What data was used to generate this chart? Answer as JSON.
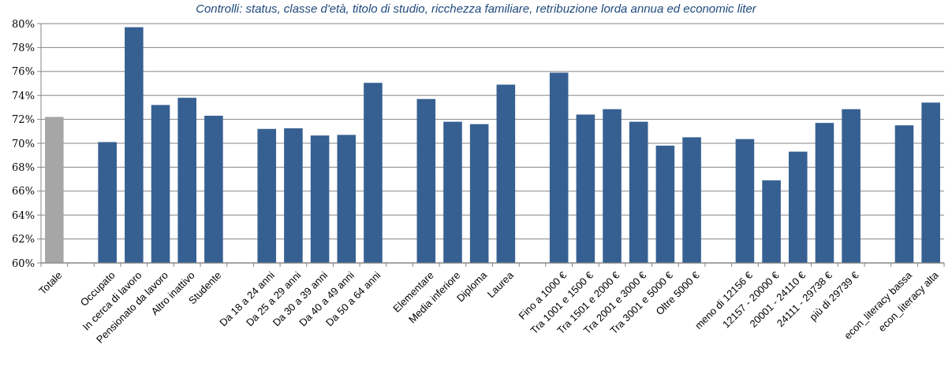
{
  "chart_data": {
    "type": "bar",
    "title": "Controlli: status, classe d'età, titolo di studio, ricchezza familiare, retribuzione lorda annua ed economic liter",
    "categories": [
      "Totale",
      null,
      "Occupato",
      "In cerca di lavoro",
      "Pensionato da lavoro",
      "Altro inattivo",
      "Studente",
      null,
      "Da 18 a 24 anni",
      "Da 25 a 29 anni",
      "Da 30 a 39 anni",
      "Da 40 a 49 anni",
      "Da 50 a 64 anni",
      null,
      "Elementare",
      "Media inferiore",
      "Diploma",
      "Laurea",
      null,
      "Fino a 1000 €",
      "Tra 1001 e 1500 €",
      "Tra 1501 e 2000 €",
      "Tra 2001 e 3000 €",
      "Tra 3001 e 5000 €",
      "Oltre 5000 €",
      null,
      "meno di 12156 €",
      "12157 - 20000 €",
      "20001 - 24110 €",
      "24111 - 29738 €",
      "più di 29739 €",
      null,
      "econ_literacy bassa",
      "econ_literacy alta"
    ],
    "values": [
      72.2,
      null,
      70.1,
      79.7,
      73.2,
      73.8,
      72.3,
      null,
      71.2,
      71.25,
      70.65,
      70.7,
      75.05,
      null,
      73.7,
      71.8,
      71.6,
      74.9,
      null,
      75.9,
      72.4,
      72.85,
      71.8,
      69.8,
      70.5,
      null,
      70.35,
      66.9,
      69.3,
      71.7,
      72.85,
      null,
      71.5,
      73.4
    ],
    "colors": [
      "#a6a6a6",
      null,
      "#376092",
      "#376092",
      "#376092",
      "#376092",
      "#376092",
      null,
      "#376092",
      "#376092",
      "#376092",
      "#376092",
      "#376092",
      null,
      "#376092",
      "#376092",
      "#376092",
      "#376092",
      null,
      "#376092",
      "#376092",
      "#376092",
      "#376092",
      "#376092",
      "#376092",
      null,
      "#376092",
      "#376092",
      "#376092",
      "#376092",
      "#376092",
      null,
      "#376092",
      "#376092"
    ],
    "ylim": [
      60,
      80
    ],
    "yticks": [
      {
        "value": 60,
        "label": "60%"
      },
      {
        "value": 62,
        "label": "62%"
      },
      {
        "value": 64,
        "label": "64%"
      },
      {
        "value": 66,
        "label": "66%"
      },
      {
        "value": 68,
        "label": "68%"
      },
      {
        "value": 70,
        "label": "70%"
      },
      {
        "value": 72,
        "label": "72%"
      },
      {
        "value": 74,
        "label": "74%"
      },
      {
        "value": 76,
        "label": "76%"
      },
      {
        "value": 78,
        "label": "78%"
      },
      {
        "value": 80,
        "label": "80%"
      }
    ],
    "grid": "y"
  }
}
